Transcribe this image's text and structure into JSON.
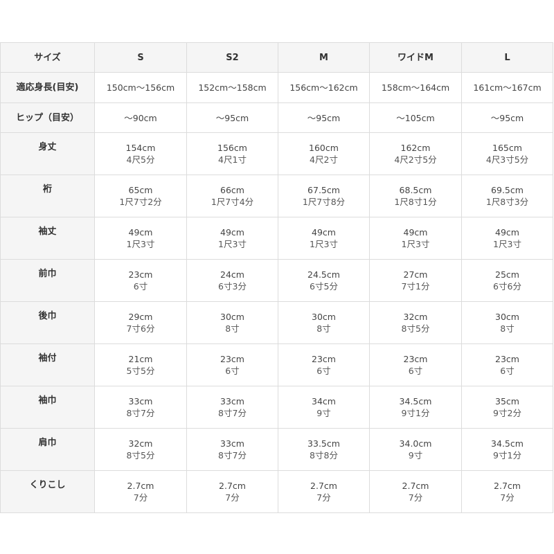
{
  "table": {
    "header": [
      "サイズ",
      "S",
      "S2",
      "M",
      "ワイドM",
      "L"
    ],
    "rows": [
      {
        "label": "適応身長(目安)",
        "cells": [
          [
            "150cm〜156cm"
          ],
          [
            "152cm〜158cm"
          ],
          [
            "156cm〜162cm"
          ],
          [
            "158cm〜164cm"
          ],
          [
            "161cm〜167cm"
          ]
        ]
      },
      {
        "label": "ヒップ（目安）",
        "cells": [
          [
            "〜90cm"
          ],
          [
            "〜95cm"
          ],
          [
            "〜95cm"
          ],
          [
            "〜105cm"
          ],
          [
            "〜95cm"
          ]
        ]
      },
      {
        "label": "身丈",
        "cells": [
          [
            "154cm",
            "4尺5分"
          ],
          [
            "156cm",
            "4尺1寸"
          ],
          [
            "160cm",
            "4尺2寸"
          ],
          [
            "162cm",
            "4尺2寸5分"
          ],
          [
            "165cm",
            "4尺3寸5分"
          ]
        ]
      },
      {
        "label": "裄",
        "cells": [
          [
            "65cm",
            "1尺7寸2分"
          ],
          [
            "66cm",
            "1尺7寸4分"
          ],
          [
            "67.5cm",
            "1尺7寸8分"
          ],
          [
            "68.5cm",
            "1尺8寸1分"
          ],
          [
            "69.5cm",
            "1尺8寸3分"
          ]
        ]
      },
      {
        "label": "袖丈",
        "cells": [
          [
            "49cm",
            "1尺3寸"
          ],
          [
            "49cm",
            "1尺3寸"
          ],
          [
            "49cm",
            "1尺3寸"
          ],
          [
            "49cm",
            "1尺3寸"
          ],
          [
            "49cm",
            "1尺3寸"
          ]
        ]
      },
      {
        "label": "前巾",
        "cells": [
          [
            "23cm",
            "6寸"
          ],
          [
            "24cm",
            "6寸3分"
          ],
          [
            "24.5cm",
            "6寸5分"
          ],
          [
            "27cm",
            "7寸1分"
          ],
          [
            "25cm",
            "6寸6分"
          ]
        ]
      },
      {
        "label": "後巾",
        "cells": [
          [
            "29cm",
            "7寸6分"
          ],
          [
            "30cm",
            "8寸"
          ],
          [
            "30cm",
            "8寸"
          ],
          [
            "32cm",
            "8寸5分"
          ],
          [
            "30cm",
            "8寸"
          ]
        ]
      },
      {
        "label": "袖付",
        "cells": [
          [
            "21cm",
            "5寸5分"
          ],
          [
            "23cm",
            "6寸"
          ],
          [
            "23cm",
            "6寸"
          ],
          [
            "23cm",
            "6寸"
          ],
          [
            "23cm",
            "6寸"
          ]
        ]
      },
      {
        "label": "袖巾",
        "cells": [
          [
            "33cm",
            "8寸7分"
          ],
          [
            "33cm",
            "8寸7分"
          ],
          [
            "34cm",
            "9寸"
          ],
          [
            "34.5cm",
            "9寸1分"
          ],
          [
            "35cm",
            "9寸2分"
          ]
        ]
      },
      {
        "label": "肩巾",
        "cells": [
          [
            "32cm",
            "8寸5分"
          ],
          [
            "33cm",
            "8寸7分"
          ],
          [
            "33.5cm",
            "8寸8分"
          ],
          [
            "34.0cm",
            "9寸"
          ],
          [
            "34.5cm",
            "9寸1分"
          ]
        ]
      },
      {
        "label": "くりこし",
        "cells": [
          [
            "2.7cm",
            "7分"
          ],
          [
            "2.7cm",
            "7分"
          ],
          [
            "2.7cm",
            "7分"
          ],
          [
            "2.7cm",
            "7分"
          ],
          [
            "2.7cm",
            "7分"
          ]
        ]
      }
    ]
  }
}
